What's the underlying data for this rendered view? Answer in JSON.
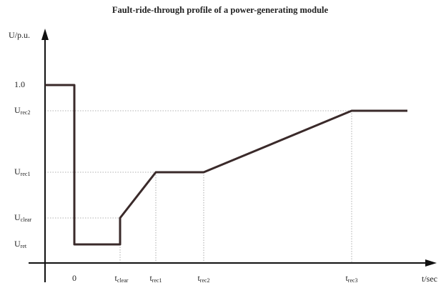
{
  "title": "Fault-ride-through profile of a power-generating module",
  "y_axis": {
    "label": "U/p.u.",
    "ticks": [
      {
        "text": "1.0"
      },
      {
        "base": "U",
        "sub": "rec2"
      },
      {
        "base": "U",
        "sub": "rec1"
      },
      {
        "base": "U",
        "sub": "clear"
      },
      {
        "base": "U",
        "sub": "ret"
      }
    ]
  },
  "x_axis": {
    "label": "t/sec",
    "ticks": [
      {
        "text": "0"
      },
      {
        "base": "t",
        "sub": "clear"
      },
      {
        "base": "t",
        "sub": "rec1"
      },
      {
        "base": "t",
        "sub": "rec2"
      },
      {
        "base": "t",
        "sub": "rec3"
      }
    ]
  }
}
